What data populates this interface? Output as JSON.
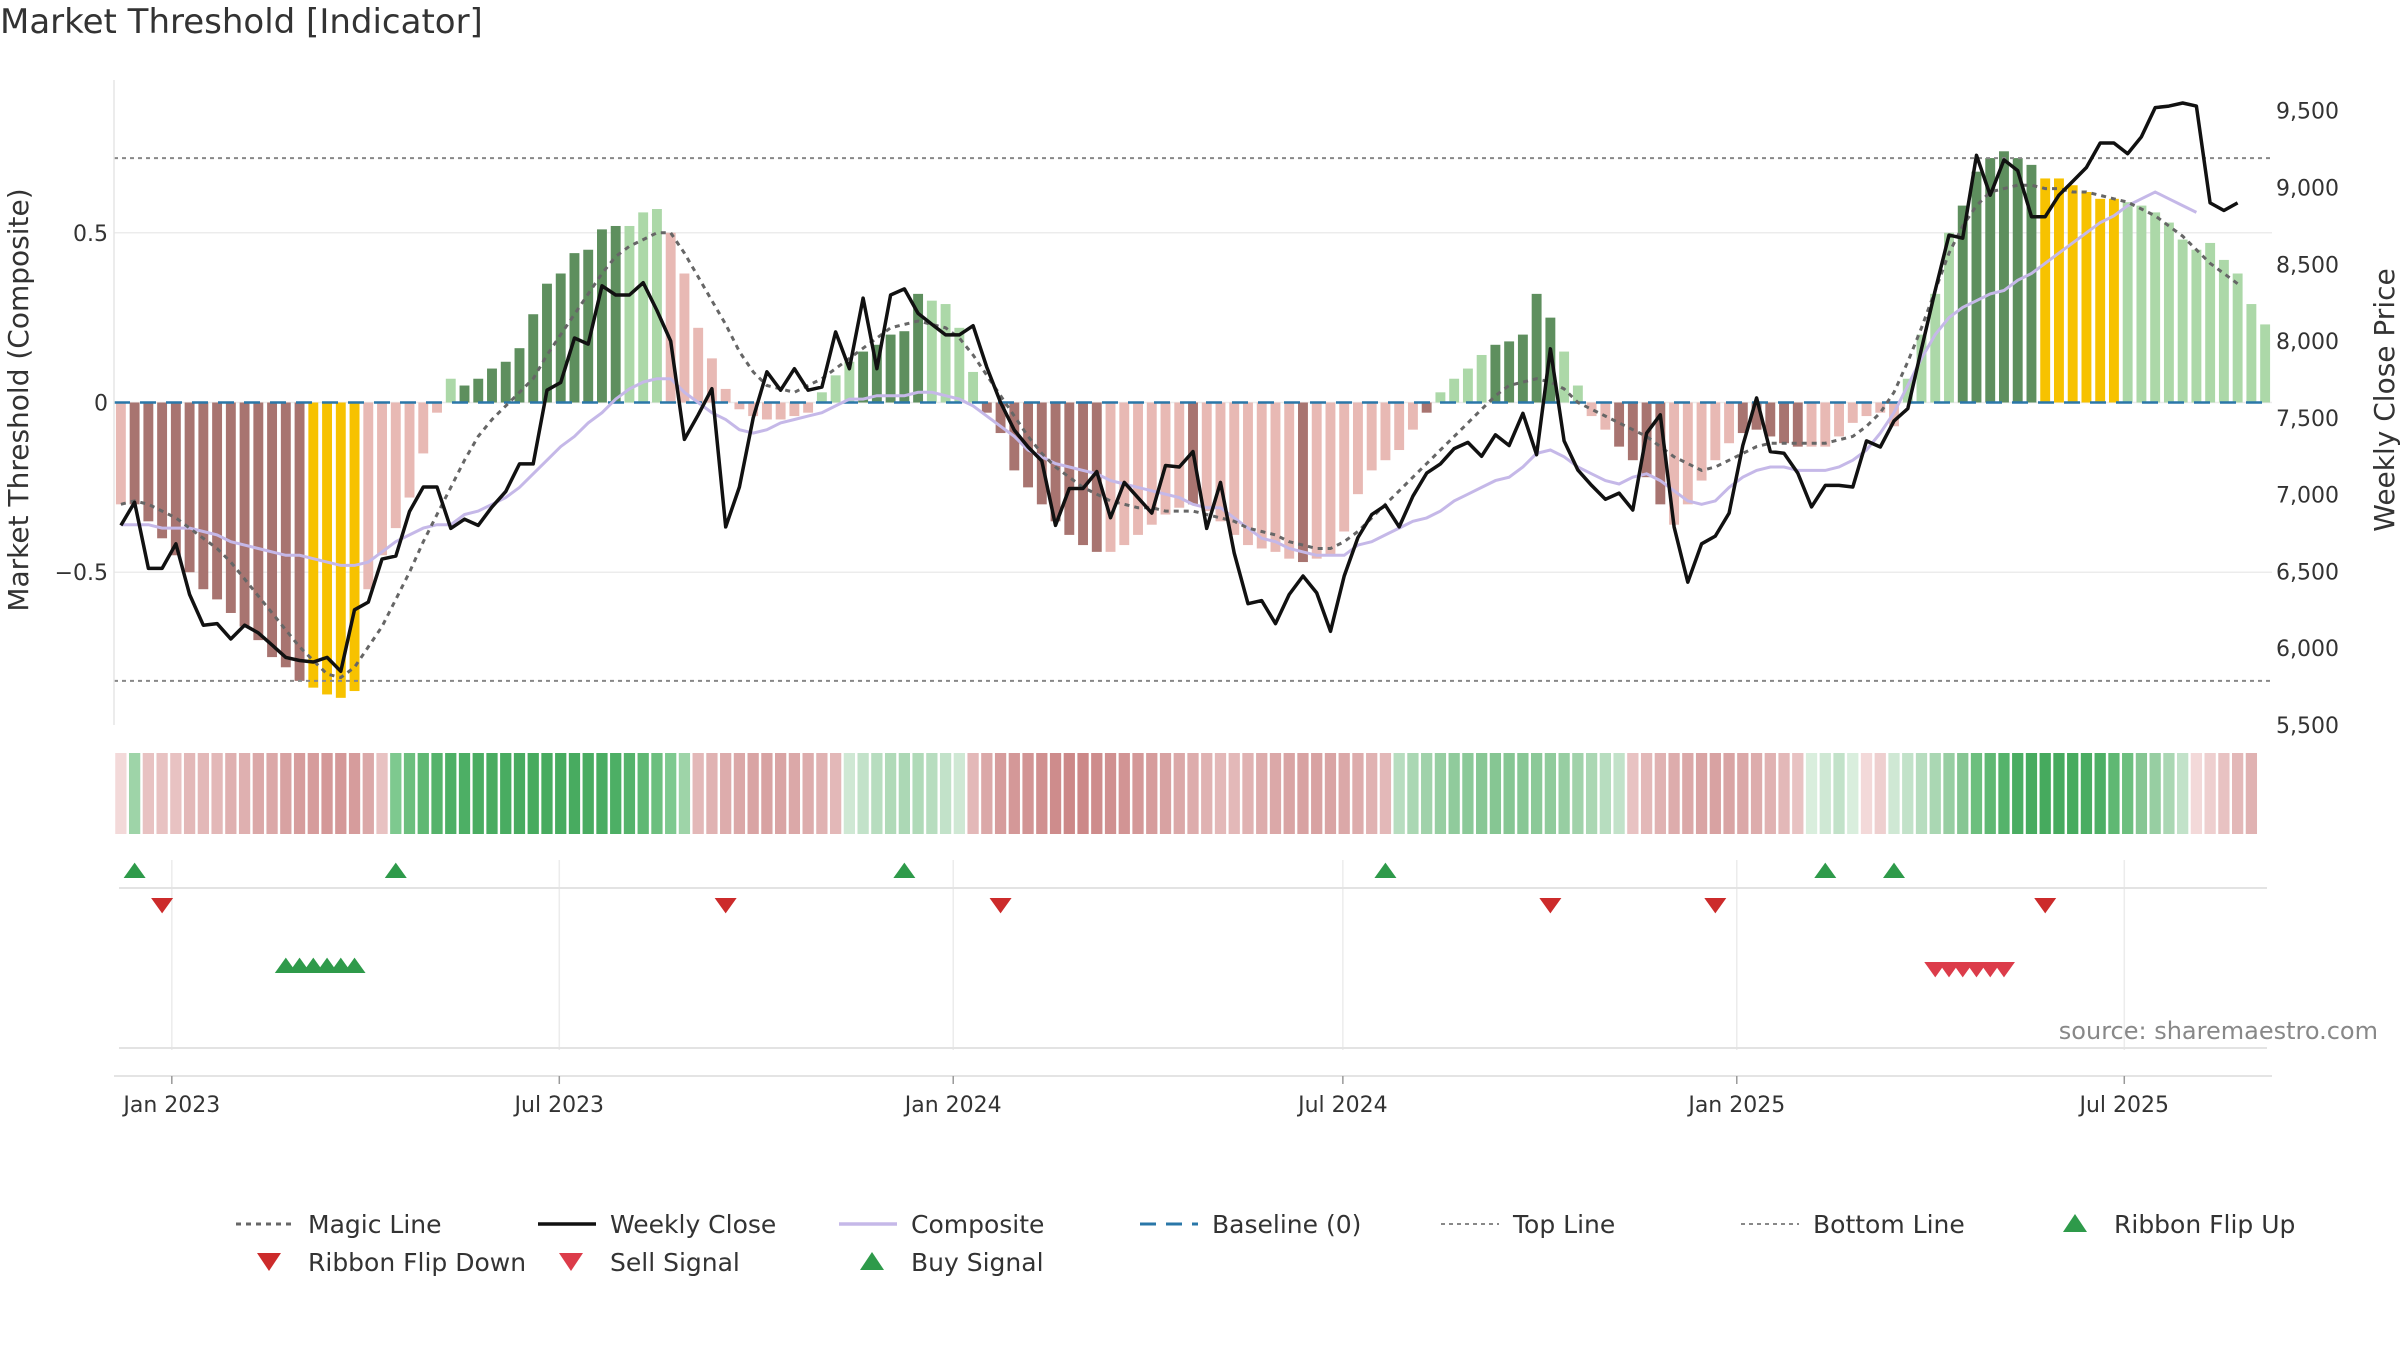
{
  "chart_data": {
    "type": "bar+line",
    "title": "Market Threshold [Indicator]",
    "source": "source: sharemaestro.com",
    "left_axis": {
      "label": "Market Threshold (Composite)",
      "ticks": [
        "0.5",
        "0",
        "−0.5"
      ],
      "tick_values": [
        0.5,
        0,
        -0.5
      ],
      "range": [
        -0.95,
        0.95
      ]
    },
    "right_axis": {
      "label": "Weekly Close Price",
      "ticks": [
        "9,500",
        "9,000",
        "8,500",
        "8,000",
        "7,500",
        "7,000",
        "6,500",
        "6,000",
        "5,500"
      ],
      "tick_values": [
        9500,
        9000,
        8500,
        8000,
        7500,
        7000,
        6500,
        6000,
        5500
      ],
      "range": [
        5500,
        9700
      ]
    },
    "x_axis": {
      "start": "2022-12-05",
      "end": "2025-09-08",
      "ticks": [
        {
          "label": "Jan 2023",
          "date": "2023-01-01"
        },
        {
          "label": "Jul 2023",
          "date": "2023-07-01"
        },
        {
          "label": "Jan 2024",
          "date": "2024-01-01"
        },
        {
          "label": "Jul 2024",
          "date": "2024-07-01"
        },
        {
          "label": "Jan 2025",
          "date": "2025-01-01"
        },
        {
          "label": "Jul 2025",
          "date": "2025-07-01"
        }
      ]
    },
    "reference_lines": {
      "top_line": 0.72,
      "bottom_line": -0.82,
      "baseline": 0
    },
    "composite_bars": [
      -0.3,
      -0.3,
      -0.35,
      -0.4,
      -0.45,
      -0.5,
      -0.55,
      -0.58,
      -0.62,
      -0.66,
      -0.7,
      -0.75,
      -0.78,
      -0.82,
      -0.84,
      -0.86,
      -0.87,
      -0.85,
      -0.55,
      -0.45,
      -0.37,
      -0.28,
      -0.15,
      -0.03,
      0.07,
      0.05,
      0.07,
      0.1,
      0.12,
      0.16,
      0.26,
      0.35,
      0.38,
      0.44,
      0.45,
      0.51,
      0.52,
      0.52,
      0.56,
      0.57,
      0.5,
      0.38,
      0.22,
      0.13,
      0.04,
      -0.02,
      -0.04,
      -0.05,
      -0.05,
      -0.04,
      -0.03,
      0.03,
      0.08,
      0.12,
      0.15,
      0.17,
      0.2,
      0.21,
      0.32,
      0.3,
      0.29,
      0.22,
      0.09,
      -0.03,
      -0.09,
      -0.2,
      -0.25,
      -0.3,
      -0.35,
      -0.39,
      -0.42,
      -0.44,
      -0.44,
      -0.42,
      -0.39,
      -0.36,
      -0.33,
      -0.31,
      -0.3,
      -0.32,
      -0.35,
      -0.39,
      -0.42,
      -0.43,
      -0.44,
      -0.46,
      -0.47,
      -0.46,
      -0.45,
      -0.38,
      -0.27,
      -0.2,
      -0.17,
      -0.14,
      -0.08,
      -0.03,
      0.03,
      0.07,
      0.1,
      0.14,
      0.17,
      0.18,
      0.2,
      0.32,
      0.25,
      0.15,
      0.05,
      -0.04,
      -0.08,
      -0.13,
      -0.17,
      -0.22,
      -0.3,
      -0.36,
      -0.3,
      -0.23,
      -0.17,
      -0.12,
      -0.09,
      -0.08,
      -0.1,
      -0.12,
      -0.13,
      -0.13,
      -0.13,
      -0.1,
      -0.06,
      -0.04,
      -0.03,
      -0.07,
      0.07,
      0.2,
      0.32,
      0.5,
      0.58,
      0.68,
      0.72,
      0.74,
      0.72,
      0.7,
      0.66,
      0.66,
      0.64,
      0.62,
      0.6,
      0.6,
      0.59,
      0.58,
      0.56,
      0.53,
      0.48,
      0.45,
      0.47,
      0.42,
      0.38,
      0.29,
      0.23
    ],
    "bar_categories": {
      "dark_red": [
        [
          1,
          13
        ]
      ],
      "yellow": [
        [
          14,
          17
        ]
      ],
      "light_red": [
        [
          0,
          0
        ],
        [
          18,
          23
        ]
      ],
      "light_green": [
        [
          24,
          34
        ],
        [
          37,
          39
        ],
        [
          51,
          53
        ],
        [
          59,
          62
        ],
        [
          96,
          99
        ],
        [
          105,
          106
        ],
        [
          130,
          133
        ],
        [
          146,
          160
        ],
        [
          162,
          164
        ]
      ],
      "dark_green": [
        [
          25,
          36
        ],
        [
          54,
          58
        ],
        [
          100,
          104
        ],
        [
          134,
          139
        ],
        [
          161,
          161
        ]
      ],
      "yellow2": [
        [
          140,
          145
        ]
      ],
      "dark_red2": [
        [
          63,
          71
        ],
        [
          78,
          78
        ],
        [
          86,
          86
        ],
        [
          95,
          95
        ],
        [
          109,
          112
        ],
        [
          118,
          122
        ]
      ],
      "light_red2": [
        [
          40,
          50
        ],
        [
          72,
          77
        ],
        [
          79,
          85
        ],
        [
          87,
          94
        ],
        [
          107,
          108
        ],
        [
          113,
          117
        ],
        [
          123,
          129
        ]
      ]
    },
    "weekly_close": [
      6800,
      6950,
      6520,
      6520,
      6680,
      6350,
      6150,
      6160,
      6060,
      6150,
      6100,
      6020,
      5940,
      5920,
      5910,
      5940,
      5850,
      6250,
      6300,
      6580,
      6600,
      6890,
      7050,
      7050,
      6780,
      6840,
      6800,
      6920,
      7020,
      7200,
      7200,
      7680,
      7730,
      8020,
      7980,
      8360,
      8300,
      8300,
      8380,
      8200,
      8000,
      7360,
      7520,
      7690,
      6790,
      7050,
      7500,
      7800,
      7680,
      7820,
      7680,
      7700,
      8060,
      7820,
      8280,
      7820,
      8300,
      8340,
      8180,
      8110,
      8040,
      8040,
      8100,
      7830,
      7600,
      7420,
      7310,
      7220,
      6800,
      7040,
      7040,
      7150,
      6850,
      7080,
      6980,
      6880,
      7190,
      7180,
      7280,
      6780,
      7080,
      6620,
      6290,
      6310,
      6160,
      6350,
      6470,
      6360,
      6110,
      6470,
      6720,
      6870,
      6930,
      6790,
      6990,
      7140,
      7200,
      7300,
      7340,
      7250,
      7390,
      7320,
      7530,
      7260,
      7950,
      7350,
      7160,
      7060,
      6970,
      7010,
      6900,
      7400,
      7520,
      6790,
      6430,
      6680,
      6730,
      6880,
      7320,
      7630,
      7280,
      7270,
      7140,
      6920,
      7060,
      7060,
      7050,
      7350,
      7310,
      7480,
      7560,
      7950,
      8330,
      8690,
      8670,
      9210,
      8950,
      9180,
      9110,
      8810,
      8810,
      8950,
      9040,
      9130,
      9290,
      9290,
      9220,
      9330,
      9520,
      9530,
      9550,
      9530,
      8900,
      8850,
      8900
    ],
    "composite_line": [
      -0.36,
      -0.36,
      -0.36,
      -0.37,
      -0.37,
      -0.37,
      -0.38,
      -0.39,
      -0.41,
      -0.42,
      -0.43,
      -0.44,
      -0.45,
      -0.45,
      -0.46,
      -0.47,
      -0.48,
      -0.48,
      -0.47,
      -0.44,
      -0.41,
      -0.39,
      -0.37,
      -0.36,
      -0.36,
      -0.33,
      -0.32,
      -0.3,
      -0.28,
      -0.25,
      -0.21,
      -0.17,
      -0.13,
      -0.1,
      -0.06,
      -0.03,
      0.01,
      0.04,
      0.06,
      0.07,
      0.07,
      0.03,
      0.0,
      -0.03,
      -0.05,
      -0.08,
      -0.09,
      -0.08,
      -0.06,
      -0.05,
      -0.04,
      -0.03,
      -0.01,
      0.01,
      0.01,
      0.02,
      0.02,
      0.02,
      0.03,
      0.03,
      0.02,
      0.01,
      -0.01,
      -0.04,
      -0.07,
      -0.1,
      -0.14,
      -0.16,
      -0.18,
      -0.19,
      -0.2,
      -0.21,
      -0.23,
      -0.24,
      -0.25,
      -0.26,
      -0.27,
      -0.28,
      -0.3,
      -0.31,
      -0.31,
      -0.34,
      -0.37,
      -0.4,
      -0.41,
      -0.43,
      -0.44,
      -0.45,
      -0.45,
      -0.45,
      -0.42,
      -0.41,
      -0.39,
      -0.37,
      -0.35,
      -0.34,
      -0.32,
      -0.29,
      -0.27,
      -0.25,
      -0.23,
      -0.22,
      -0.19,
      -0.15,
      -0.14,
      -0.16,
      -0.19,
      -0.21,
      -0.23,
      -0.24,
      -0.22,
      -0.21,
      -0.23,
      -0.26,
      -0.29,
      -0.3,
      -0.29,
      -0.25,
      -0.22,
      -0.2,
      -0.19,
      -0.19,
      -0.2,
      -0.2,
      -0.2,
      -0.19,
      -0.17,
      -0.14,
      -0.09,
      -0.03,
      0.05,
      0.13,
      0.2,
      0.25,
      0.28,
      0.3,
      0.32,
      0.33,
      0.36,
      0.38,
      0.41,
      0.44,
      0.47,
      0.5,
      0.53,
      0.55,
      0.58,
      0.6,
      0.62,
      0.6,
      0.58,
      0.56
    ],
    "magic_line": [
      -0.3,
      -0.29,
      -0.3,
      -0.32,
      -0.34,
      -0.37,
      -0.4,
      -0.43,
      -0.47,
      -0.52,
      -0.57,
      -0.62,
      -0.67,
      -0.72,
      -0.76,
      -0.8,
      -0.81,
      -0.78,
      -0.72,
      -0.66,
      -0.58,
      -0.5,
      -0.41,
      -0.33,
      -0.25,
      -0.17,
      -0.1,
      -0.05,
      -0.01,
      0.03,
      0.07,
      0.14,
      0.2,
      0.26,
      0.32,
      0.38,
      0.43,
      0.46,
      0.48,
      0.5,
      0.5,
      0.44,
      0.37,
      0.3,
      0.23,
      0.15,
      0.09,
      0.05,
      0.04,
      0.03,
      0.05,
      0.07,
      0.1,
      0.13,
      0.16,
      0.19,
      0.22,
      0.23,
      0.24,
      0.23,
      0.22,
      0.19,
      0.14,
      0.08,
      0.02,
      -0.04,
      -0.1,
      -0.15,
      -0.19,
      -0.22,
      -0.25,
      -0.27,
      -0.29,
      -0.3,
      -0.31,
      -0.31,
      -0.32,
      -0.32,
      -0.32,
      -0.33,
      -0.34,
      -0.35,
      -0.37,
      -0.38,
      -0.39,
      -0.41,
      -0.42,
      -0.43,
      -0.43,
      -0.41,
      -0.38,
      -0.34,
      -0.3,
      -0.26,
      -0.22,
      -0.18,
      -0.14,
      -0.1,
      -0.06,
      -0.02,
      0.02,
      0.05,
      0.06,
      0.07,
      0.06,
      0.04,
      0.0,
      -0.02,
      -0.04,
      -0.06,
      -0.08,
      -0.1,
      -0.13,
      -0.16,
      -0.18,
      -0.2,
      -0.19,
      -0.17,
      -0.15,
      -0.13,
      -0.12,
      -0.12,
      -0.12,
      -0.12,
      -0.12,
      -0.11,
      -0.1,
      -0.07,
      -0.03,
      0.03,
      0.12,
      0.22,
      0.33,
      0.44,
      0.52,
      0.58,
      0.62,
      0.63,
      0.64,
      0.64,
      0.63,
      0.63,
      0.62,
      0.62,
      0.61,
      0.6,
      0.59,
      0.57,
      0.55,
      0.52,
      0.49,
      0.45,
      0.41,
      0.38,
      0.35
    ],
    "ribbon_colors": [
      "#f3d9d9",
      "#9ed4a8",
      "#e8c2c2",
      "#e8c2c2",
      "#e8c2c2",
      "#e3b8b8",
      "#e3b8b8",
      "#e3b8b8",
      "#dfb0b0",
      "#dfb0b0",
      "#dba8a8",
      "#dba8a8",
      "#d8a2a2",
      "#d69c9c",
      "#d69c9c",
      "#d49898",
      "#d49898",
      "#d69c9c",
      "#dba8a8",
      "#e8c2c2",
      "#7ec98f",
      "#6cbf7e",
      "#5fb873",
      "#55b36b",
      "#4daf65",
      "#4daf65",
      "#4aad62",
      "#49ac61",
      "#49ac61",
      "#48ab60",
      "#47ab5f",
      "#47ab5f",
      "#47ab5f",
      "#48ab60",
      "#49ac61",
      "#4aad62",
      "#4daf65",
      "#55b36b",
      "#5fb873",
      "#6cbf7e",
      "#7ec98f",
      "#9ed4a8",
      "#e3b8b8",
      "#e0b2b2",
      "#ddacac",
      "#dba8a8",
      "#d9a4a4",
      "#d8a2a2",
      "#d9a4a4",
      "#dba8a8",
      "#ddacac",
      "#e0b2b2",
      "#e3b8b8",
      "#cfe8d4",
      "#c2e2c9",
      "#b7ddbf",
      "#b0dab8",
      "#acd8b5",
      "#b0dab8",
      "#b7ddbf",
      "#c2e2c9",
      "#cfe8d4",
      "#e3b8b8",
      "#dba8a8",
      "#d69c9c",
      "#d49898",
      "#d29494",
      "#d09090",
      "#ce8c8c",
      "#cc8888",
      "#cc8888",
      "#ce8c8c",
      "#d09090",
      "#d29494",
      "#d49898",
      "#d69c9c",
      "#d8a2a2",
      "#dba8a8",
      "#ddacac",
      "#e0b2b2",
      "#e3b8b8",
      "#e3b8b8",
      "#e0b2b2",
      "#ddacac",
      "#dba8a8",
      "#d9a4a4",
      "#d8a2a2",
      "#d8a2a2",
      "#d9a4a4",
      "#dba8a8",
      "#ddacac",
      "#e0b2b2",
      "#e3b8b8",
      "#b7ddbf",
      "#aad7b3",
      "#a0d2aa",
      "#97cea2",
      "#90cb9c",
      "#8bc998",
      "#88c795",
      "#86c693",
      "#86c693",
      "#88c795",
      "#8bc998",
      "#90cb9c",
      "#97cea2",
      "#a0d2aa",
      "#aad7b3",
      "#b7ddbf",
      "#c2e2c9",
      "#e8c2c2",
      "#e3b8b8",
      "#e0b2b2",
      "#ddacac",
      "#dba8a8",
      "#d9a4a4",
      "#d8a2a2",
      "#d9a4a4",
      "#dba8a8",
      "#ddacac",
      "#e0b2b2",
      "#e3b8b8",
      "#e8c2c2",
      "#d9eedd",
      "#cfe8d4",
      "#c2e2c9",
      "#d9eedd",
      "#f3d9d9",
      "#eecfcf",
      "#cfe8d4",
      "#c2e2c9",
      "#b7ddbf",
      "#aad7b3",
      "#97cea2",
      "#86c693",
      "#6cbf7e",
      "#5fb873",
      "#55b36b",
      "#4aad62",
      "#47ab5f",
      "#46aa5e",
      "#46aa5e",
      "#47ab5f",
      "#4aad62",
      "#4daf65",
      "#5fb873",
      "#6cbf7e",
      "#86c693",
      "#97cea2",
      "#aad7b3",
      "#c2e2c9",
      "#f3d9d9",
      "#eecfcf",
      "#e8c2c2",
      "#e3b8b8",
      "#e0b2b2"
    ],
    "ribbon_flip_up": [
      1,
      20,
      57,
      92,
      124,
      129
    ],
    "ribbon_flip_down": [
      3,
      44,
      64,
      104,
      116,
      140
    ],
    "buy_signals": [
      12,
      13,
      14,
      15,
      16,
      17
    ],
    "sell_signals": [
      132,
      133,
      134,
      135,
      136,
      137
    ],
    "legend": [
      {
        "label": "Magic Line",
        "kind": "dotted",
        "color": "#666666"
      },
      {
        "label": "Weekly Close",
        "kind": "solid",
        "color": "#111111"
      },
      {
        "label": "Composite",
        "kind": "solid",
        "color": "#c5b8e8"
      },
      {
        "label": "Baseline (0)",
        "kind": "dashed",
        "color": "#2a77a8"
      },
      {
        "label": "Top Line",
        "kind": "dotted-thin",
        "color": "#888888"
      },
      {
        "label": "Bottom Line",
        "kind": "dotted-thin",
        "color": "#888888"
      },
      {
        "label": "Ribbon Flip Up",
        "kind": "tri-up",
        "color": "#2e9a4a"
      },
      {
        "label": "Ribbon Flip Down",
        "kind": "tri-down",
        "color": "#cc2b2b"
      },
      {
        "label": "Sell Signal",
        "kind": "tri-down",
        "color": "#dc3c4a"
      },
      {
        "label": "Buy Signal",
        "kind": "tri-up",
        "color": "#2e9a4a"
      }
    ],
    "colors": {
      "dark_green": "#5e8f5e",
      "light_green": "#acd8a8",
      "dark_red": "#a87470",
      "light_red": "#e8b9b4",
      "yellow": "#f7c200",
      "weekly_close": "#111111",
      "composite": "#c5b8e8",
      "magic": "#666666",
      "baseline": "#2a77a8",
      "ref": "#888888",
      "flip_up": "#2e9a4a",
      "flip_down": "#cc2b2b",
      "sell": "#dc3c4a",
      "buy": "#2e9a4a"
    }
  }
}
